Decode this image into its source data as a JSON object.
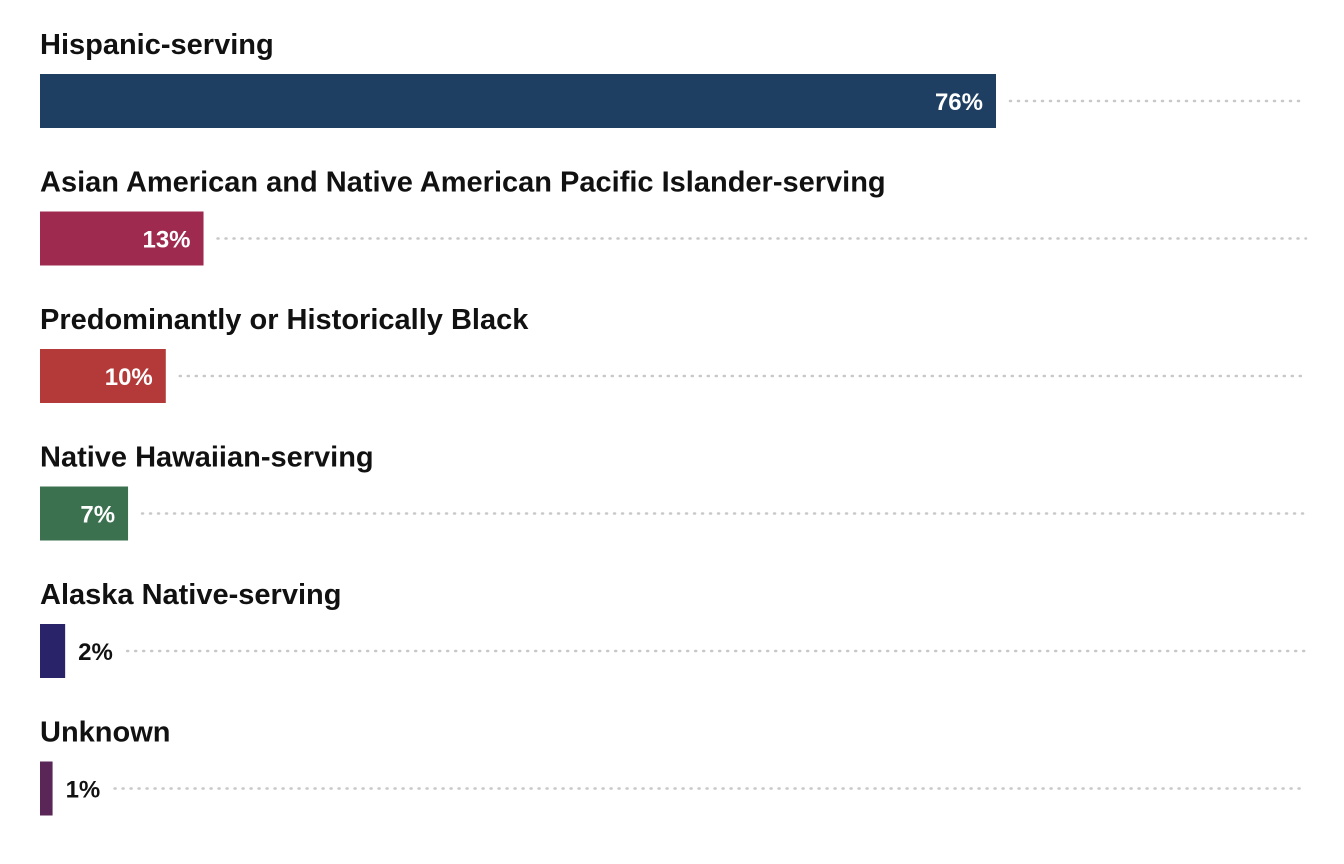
{
  "chart_data": {
    "type": "bar",
    "orientation": "horizontal",
    "title": "",
    "xlabel": "",
    "ylabel": "",
    "xlim": [
      0,
      100
    ],
    "grid": false,
    "legend": "none",
    "value_suffix": "%",
    "categories": [
      "Hispanic-serving",
      "Asian American and Native American Pacific Islander-serving",
      "Predominantly or Historically Black",
      "Native Hawaiian-serving",
      "Alaska Native-serving",
      "Unknown"
    ],
    "values": [
      76,
      13,
      10,
      7,
      2,
      1
    ],
    "value_labels": [
      "76%",
      "13%",
      "10%",
      "7%",
      "2%",
      "1%"
    ],
    "colors": [
      "#1e3f62",
      "#9e2a4f",
      "#b33a38",
      "#3c7150",
      "#29246a",
      "#5a2657"
    ]
  }
}
